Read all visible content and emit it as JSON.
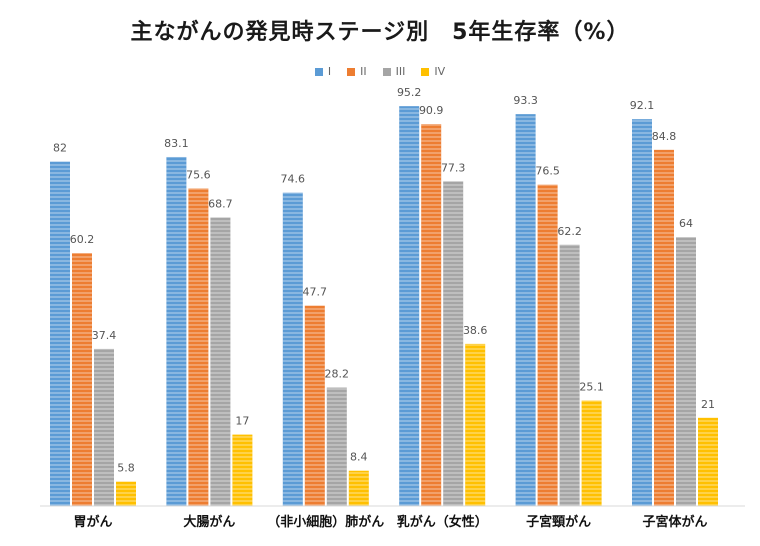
{
  "chart_data": {
    "type": "bar",
    "title": "主ながんの発見時ステージ別　5年生存率（%）",
    "categories": [
      "胃がん",
      "大腸がん",
      "（非小細胞）肺がん",
      "乳がん（女性）",
      "子宮頸がん",
      "子宮体がん"
    ],
    "series": [
      {
        "name": "I",
        "color": "#5B9BD5",
        "values": [
          82,
          83.1,
          74.6,
          95.2,
          93.3,
          92.1
        ]
      },
      {
        "name": "II",
        "color": "#ED7D31",
        "values": [
          60.2,
          75.6,
          47.7,
          90.9,
          76.5,
          84.8
        ]
      },
      {
        "name": "III",
        "color": "#A5A5A5",
        "values": [
          37.4,
          68.7,
          28.2,
          77.3,
          62.2,
          64
        ]
      },
      {
        "name": "IV",
        "color": "#FFC000",
        "values": [
          5.8,
          17,
          8.4,
          38.6,
          25.1,
          21
        ]
      }
    ],
    "ylim": [
      0,
      100
    ],
    "xlabel": "",
    "ylabel": "",
    "legend_position": "top",
    "grid": false
  }
}
